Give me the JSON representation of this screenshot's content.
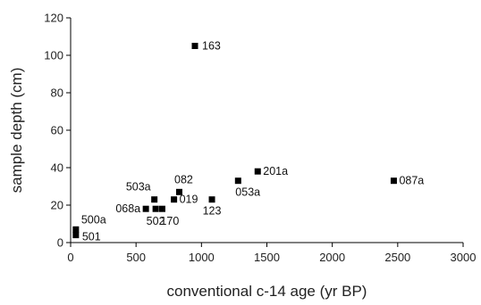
{
  "chart_data": {
    "type": "scatter",
    "title": "",
    "xlabel": "conventional c-14 age (yr BP)",
    "ylabel": "sample depth (cm)",
    "xlim": [
      0,
      3000
    ],
    "ylim": [
      0,
      120
    ],
    "xticks": [
      "0",
      "500",
      "1000",
      "1500",
      "2000",
      "2500",
      "3000"
    ],
    "yticks": [
      "0",
      "20",
      "40",
      "60",
      "80",
      "100",
      "120"
    ],
    "grid": false,
    "marker": "square",
    "marker_color": "#000000",
    "points": [
      {
        "label": "163",
        "x": 950,
        "y": 105
      },
      {
        "label": "201a",
        "x": 1430,
        "y": 38
      },
      {
        "label": "087a",
        "x": 2470,
        "y": 33
      },
      {
        "label": "053a",
        "x": 1280,
        "y": 33
      },
      {
        "label": "082",
        "x": 830,
        "y": 27
      },
      {
        "label": "503a",
        "x": 640,
        "y": 23
      },
      {
        "label": "019",
        "x": 790,
        "y": 23
      },
      {
        "label": "123",
        "x": 1080,
        "y": 23
      },
      {
        "label": "068a",
        "x": 575,
        "y": 18
      },
      {
        "label": "502",
        "x": 650,
        "y": 18
      },
      {
        "label": "170",
        "x": 700,
        "y": 18
      },
      {
        "label": "500a",
        "x": 40,
        "y": 7
      },
      {
        "label": "501",
        "x": 40,
        "y": 4
      }
    ]
  }
}
